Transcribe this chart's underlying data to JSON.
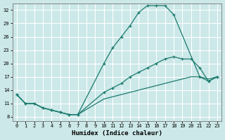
{
  "xlabel": "Humidex (Indice chaleur)",
  "bg_color": "#cce8e8",
  "grid_color": "#ffffff",
  "line_color": "#1a7a6e",
  "xlim_min": -0.5,
  "xlim_max": 23.5,
  "ylim_min": 7.0,
  "ylim_max": 33.5,
  "yticks": [
    8,
    11,
    14,
    17,
    20,
    23,
    26,
    29,
    32
  ],
  "xticks": [
    0,
    1,
    2,
    3,
    4,
    5,
    6,
    7,
    8,
    9,
    10,
    11,
    12,
    13,
    14,
    15,
    16,
    17,
    18,
    19,
    20,
    21,
    22,
    23
  ],
  "curve_upper_x": [
    0,
    1,
    2,
    3,
    4,
    5,
    6,
    7,
    10,
    11,
    12,
    13,
    14,
    15,
    16,
    17,
    18,
    21,
    22,
    23
  ],
  "curve_upper_y": [
    13,
    11,
    11,
    10,
    9.5,
    9,
    8.5,
    8.5,
    20,
    23.5,
    26,
    28.5,
    31.5,
    33,
    33,
    33,
    31,
    17,
    16,
    17
  ],
  "curve_mid_x": [
    0,
    1,
    2,
    3,
    4,
    5,
    6,
    7,
    10,
    11,
    12,
    13,
    14,
    15,
    16,
    17,
    18,
    19,
    20,
    21,
    22,
    23
  ],
  "curve_mid_y": [
    13,
    11,
    11,
    10,
    9.5,
    9,
    8.5,
    8.5,
    13.5,
    14.5,
    15.5,
    17,
    18,
    19,
    20,
    21,
    21.5,
    21,
    21,
    19,
    16,
    17
  ],
  "curve_low_x": [
    0,
    1,
    2,
    3,
    4,
    5,
    6,
    7,
    10,
    11,
    12,
    13,
    14,
    15,
    16,
    17,
    18,
    19,
    20,
    21,
    22,
    23
  ],
  "curve_low_y": [
    13,
    11,
    11,
    10,
    9.5,
    9,
    8.5,
    8.5,
    12,
    12.5,
    13,
    13.5,
    14,
    14.5,
    15,
    15.5,
    16,
    16.5,
    17,
    17,
    16.5,
    17
  ]
}
